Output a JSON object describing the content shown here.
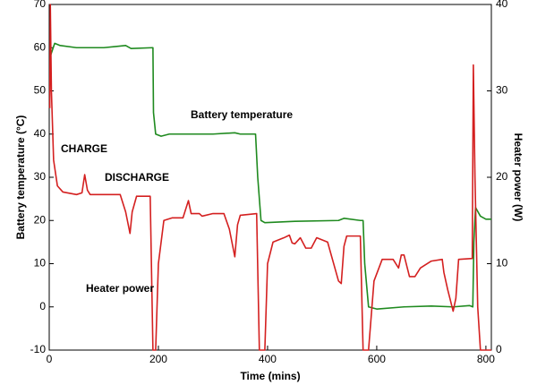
{
  "chart_data": {
    "type": "line",
    "xlabel": "Time (mins)",
    "ylabel": "Battery temperature (°C)",
    "y2label": "Heater power (W)",
    "xlim": [
      0,
      810
    ],
    "xticks": [
      0,
      200,
      400,
      600,
      800
    ],
    "ylim": [
      -10,
      70
    ],
    "yticks": [
      -10,
      0,
      10,
      20,
      30,
      40,
      50,
      60,
      70
    ],
    "y2lim": [
      0,
      40
    ],
    "y2ticks": [
      0,
      10,
      20,
      30,
      40
    ],
    "annotations": [
      "Battery temperature",
      "CHARGE",
      "DISCHARGE",
      "Heater power"
    ],
    "series": [
      {
        "name": "Battery temperature",
        "color": "#1f8a1f",
        "x": [
          2,
          10,
          20,
          50,
          100,
          140,
          150,
          190,
          191,
          195,
          205,
          220,
          300,
          340,
          350,
          378,
          382,
          388,
          395,
          450,
          530,
          540,
          570,
          575,
          578,
          585,
          600,
          650,
          700,
          740,
          770,
          776,
          778,
          781,
          790,
          800,
          810
        ],
        "values": [
          58,
          61,
          60.5,
          60,
          60,
          60.5,
          59.8,
          60,
          45,
          40,
          39.5,
          40,
          40,
          40.3,
          40,
          40,
          30,
          20,
          19.5,
          19.8,
          20,
          20.5,
          20,
          20,
          10,
          0,
          -0.5,
          0,
          0.2,
          0,
          0.3,
          0,
          15,
          23,
          21,
          20.3,
          20.3
        ]
      },
      {
        "name": "Heater power",
        "color": "#d42020",
        "axis": "y2",
        "x": [
          1,
          2,
          4,
          8,
          15,
          25,
          50,
          60,
          65,
          70,
          75,
          130,
          140,
          148,
          152,
          160,
          185,
          190,
          195,
          200,
          210,
          225,
          245,
          255,
          260,
          275,
          280,
          300,
          320,
          330,
          340,
          345,
          350,
          380,
          385,
          395,
          400,
          410,
          430,
          440,
          445,
          450,
          460,
          470,
          480,
          490,
          510,
          530,
          535,
          540,
          545,
          570,
          575,
          585,
          595,
          610,
          630,
          640,
          645,
          650,
          660,
          670,
          680,
          700,
          720,
          723,
          730,
          740,
          745,
          750,
          775,
          777,
          780,
          785,
          790,
          810
        ],
        "values": [
          28,
          40,
          30,
          22,
          19,
          18.3,
          18,
          18.2,
          20.3,
          18.5,
          18,
          18,
          16,
          13.5,
          16,
          17.8,
          17.8,
          0,
          0,
          10,
          15,
          15.3,
          15.3,
          17.3,
          15.8,
          15.8,
          15.5,
          15.8,
          15.8,
          14,
          10.8,
          14.5,
          15.6,
          15.8,
          0,
          0,
          10,
          12.5,
          13,
          13.3,
          12.4,
          12.3,
          13,
          11.8,
          11.8,
          13,
          12.5,
          8,
          7.7,
          12,
          13.2,
          13.2,
          0,
          0,
          8,
          10.5,
          10.5,
          9.5,
          11,
          11,
          8.5,
          8.5,
          9.5,
          10.3,
          10.5,
          9,
          7,
          4.5,
          6,
          10.5,
          10.6,
          33,
          20,
          5,
          0,
          0
        ]
      }
    ]
  }
}
